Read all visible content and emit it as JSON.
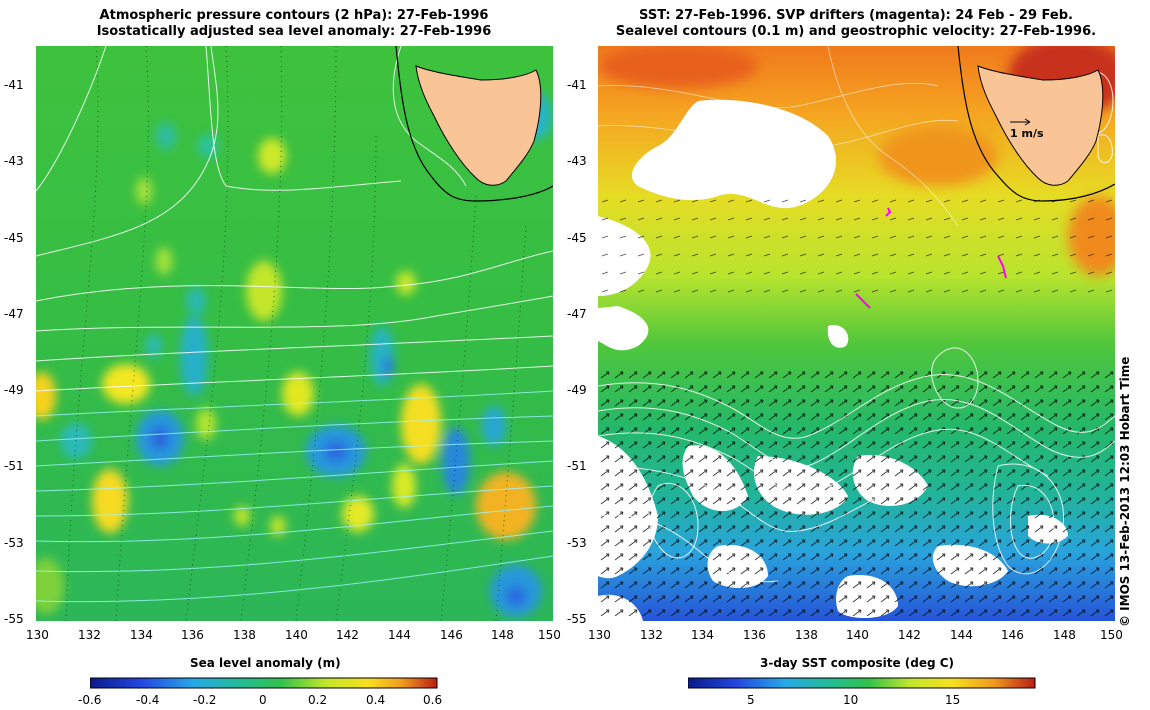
{
  "left_panel": {
    "title_line1": "Atmospheric pressure contours (2 hPa): 27-Feb-1996",
    "title_line2": "Isostatically adjusted sea level anomaly: 27-Feb-1996",
    "x_ticks": [
      "130",
      "132",
      "134",
      "136",
      "138",
      "140",
      "142",
      "144",
      "146",
      "148",
      "150"
    ],
    "y_ticks": [
      "-41",
      "-43",
      "-45",
      "-47",
      "-49",
      "-51",
      "-53",
      "-55"
    ],
    "colorbar_title": "Sea level anomaly (m)",
    "colorbar_ticks": [
      "-0.6",
      "-0.4",
      "-0.2",
      "0",
      "0.2",
      "0.4",
      "0.6"
    ],
    "colorbar_range": [
      -0.6,
      0.6
    ]
  },
  "right_panel": {
    "title_line1": "SST: 27-Feb-1996. SVP drifters (magenta): 24 Feb - 29 Feb.",
    "title_line2": "Sealevel contours (0.1 m) and geostrophic velocity: 27-Feb-1996.",
    "x_ticks": [
      "130",
      "132",
      "134",
      "136",
      "138",
      "140",
      "142",
      "144",
      "146",
      "148",
      "150"
    ],
    "y_ticks": [
      "-41",
      "-43",
      "-45",
      "-47",
      "-49",
      "-51",
      "-53",
      "-55"
    ],
    "velocity_scale_label": "1 m/s",
    "colorbar_title": "3-day SST composite (deg C)",
    "colorbar_ticks": [
      "5",
      "10",
      "15"
    ],
    "colorbar_range": [
      2,
      19
    ]
  },
  "credit": "© IMOS 13-Feb-2013 12:03 Hobart Time",
  "map_extent": {
    "lon": [
      130,
      150
    ],
    "lat": [
      -55,
      -40.1
    ]
  },
  "colors": {
    "land": "#f9c597",
    "coastline": "#000000",
    "drifters": "#ff00ff",
    "ocean_mid": "#21c04a",
    "contours": "#ffffff"
  },
  "icons": [
    "tasmania-land",
    "velocity-arrow"
  ]
}
